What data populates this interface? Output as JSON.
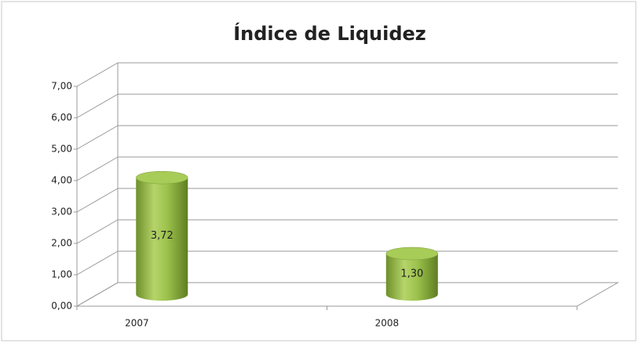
{
  "chart_data": {
    "type": "bar3d",
    "title": "Índice de Liquidez",
    "categories": [
      "2007",
      "2008"
    ],
    "values": [
      3.72,
      1.3
    ],
    "value_labels": [
      "3,72",
      "1,30"
    ],
    "color": "#8db33e",
    "ylim": [
      0,
      7
    ],
    "yticks": [
      {
        "value": 0,
        "label": "0,00"
      },
      {
        "value": 1,
        "label": "1,00"
      },
      {
        "value": 2,
        "label": "2,00"
      },
      {
        "value": 3,
        "label": "3,00"
      },
      {
        "value": 4,
        "label": "4,00"
      },
      {
        "value": 5,
        "label": "5,00"
      },
      {
        "value": 6,
        "label": "6,00"
      },
      {
        "value": 7,
        "label": "7,00"
      }
    ],
    "grid": true
  }
}
